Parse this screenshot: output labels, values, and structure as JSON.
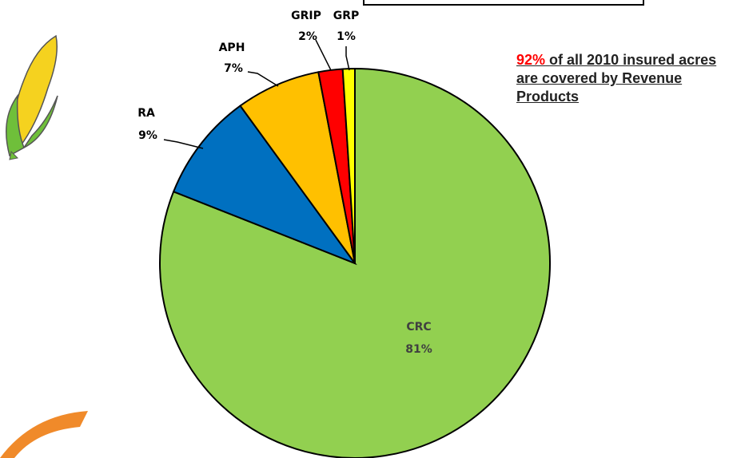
{
  "chart_data": {
    "type": "pie",
    "categories": [
      "CRC",
      "RA",
      "APH",
      "GRIP",
      "GRP"
    ],
    "values": [
      81,
      9,
      7,
      2,
      1
    ],
    "value_labels": [
      "81%",
      "9%",
      "7%",
      "2%",
      "1%"
    ],
    "colors": [
      "#92d050",
      "#0070c0",
      "#ffc000",
      "#ff0000",
      "#ffff00"
    ],
    "annotation_highlight": "92%",
    "annotation": "of all 2010 insured acres are covered by Revenue Products"
  }
}
